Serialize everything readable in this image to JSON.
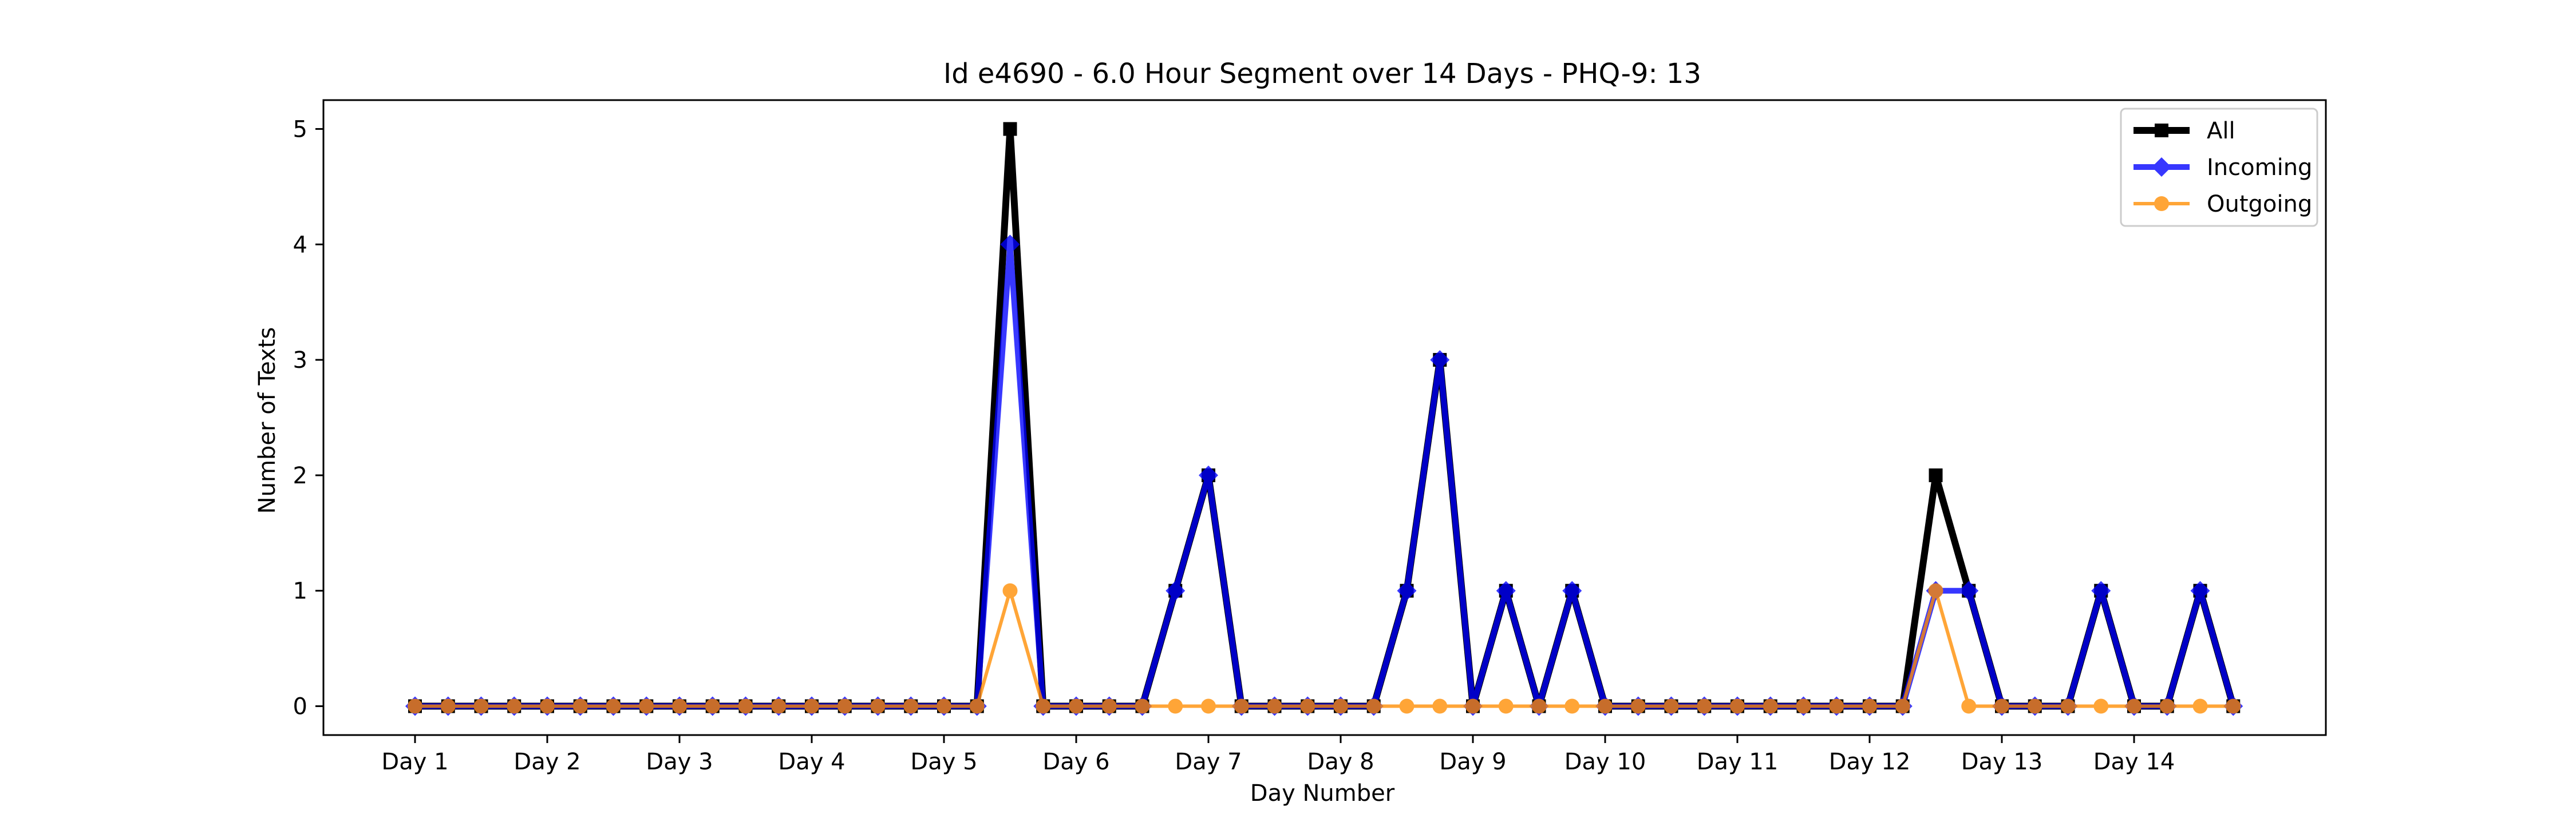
{
  "chart_data": {
    "type": "line",
    "title": "Id e4690 - 6.0 Hour Segment over 14 Days - PHQ-9: 13",
    "xlabel": "Day Number",
    "ylabel": "Number of Texts",
    "x_ticks": [
      "Day 1",
      "Day 2",
      "Day 3",
      "Day 4",
      "Day 5",
      "Day 6",
      "Day 7",
      "Day 8",
      "Day 9",
      "Day 10",
      "Day 11",
      "Day 12",
      "Day 13",
      "Day 14"
    ],
    "y_ticks": [
      "0",
      "1",
      "2",
      "3",
      "4",
      "5"
    ],
    "ylim": [
      -0.25,
      5.25
    ],
    "points_per_day": 4,
    "grid": false,
    "legend_position": "top-right",
    "series": [
      {
        "name": "All",
        "color": "#000000",
        "marker": "square",
        "values": [
          0,
          0,
          0,
          0,
          0,
          0,
          0,
          0,
          0,
          0,
          0,
          0,
          0,
          0,
          0,
          0,
          0,
          0,
          5,
          0,
          0,
          0,
          0,
          1,
          2,
          0,
          0,
          0,
          0,
          0,
          1,
          3,
          0,
          1,
          0,
          1,
          0,
          0,
          0,
          0,
          0,
          0,
          0,
          0,
          0,
          0,
          2,
          1,
          0,
          0,
          0,
          1,
          0,
          0,
          1,
          0
        ]
      },
      {
        "name": "Incoming",
        "color": "#0000ff",
        "marker": "diamond",
        "values": [
          0,
          0,
          0,
          0,
          0,
          0,
          0,
          0,
          0,
          0,
          0,
          0,
          0,
          0,
          0,
          0,
          0,
          0,
          4,
          0,
          0,
          0,
          0,
          1,
          2,
          0,
          0,
          0,
          0,
          0,
          1,
          3,
          0,
          1,
          0,
          1,
          0,
          0,
          0,
          0,
          0,
          0,
          0,
          0,
          0,
          0,
          1,
          1,
          0,
          0,
          0,
          1,
          0,
          0,
          1,
          0
        ]
      },
      {
        "name": "Outgoing",
        "color": "#ff8c00",
        "marker": "circle",
        "values": [
          0,
          0,
          0,
          0,
          0,
          0,
          0,
          0,
          0,
          0,
          0,
          0,
          0,
          0,
          0,
          0,
          0,
          0,
          1,
          0,
          0,
          0,
          0,
          0,
          0,
          0,
          0,
          0,
          0,
          0,
          0,
          0,
          0,
          0,
          0,
          0,
          0,
          0,
          0,
          0,
          0,
          0,
          0,
          0,
          0,
          0,
          1,
          0,
          0,
          0,
          0,
          0,
          0,
          0,
          0,
          0
        ]
      }
    ]
  }
}
